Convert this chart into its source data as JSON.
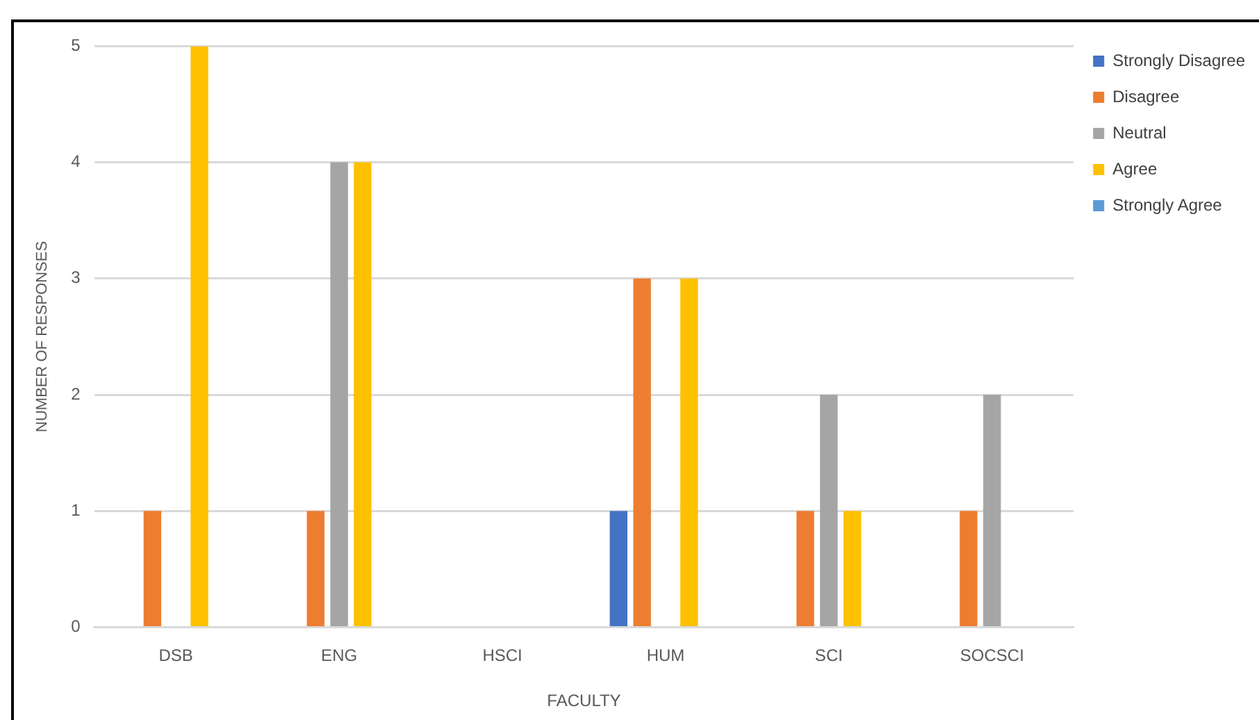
{
  "chart_data": {
    "type": "bar",
    "xlabel": "FACULTY",
    "ylabel": "NUMBER OF RESPONSES",
    "categories": [
      "DSB",
      "ENG",
      "HSCI",
      "HUM",
      "SCI",
      "SOCSCI"
    ],
    "series": [
      {
        "name": "Strongly Disagree",
        "color": "#4472c4",
        "values": [
          0,
          0,
          0,
          1,
          0,
          0
        ]
      },
      {
        "name": "Disagree",
        "color": "#ed7d31",
        "values": [
          1,
          1,
          0,
          3,
          1,
          1
        ]
      },
      {
        "name": "Neutral",
        "color": "#a5a5a5",
        "values": [
          0,
          4,
          0,
          0,
          2,
          2
        ]
      },
      {
        "name": "Agree",
        "color": "#ffc000",
        "values": [
          5,
          4,
          0,
          3,
          1,
          0
        ]
      },
      {
        "name": "Strongly Agree",
        "color": "#5b9bd5",
        "values": [
          0,
          0,
          0,
          0,
          0,
          0
        ]
      }
    ],
    "ylim": [
      0,
      5
    ],
    "yticks": [
      0,
      1,
      2,
      3,
      4,
      5
    ],
    "grid": "y",
    "legend": "top right"
  }
}
